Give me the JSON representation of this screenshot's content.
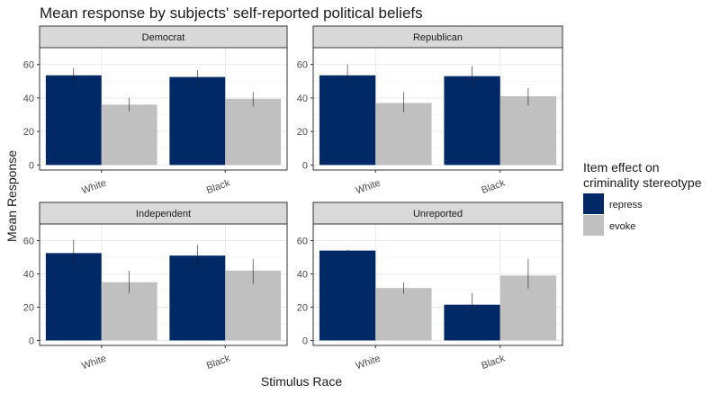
{
  "chart_data": {
    "type": "bar",
    "title": "Mean response by subjects' self-reported political beliefs",
    "xlabel": "Stimulus Race",
    "ylabel": "Mean Response",
    "categories": [
      "White",
      "Black"
    ],
    "yticks": [
      0,
      20,
      40,
      60
    ],
    "ylim": [
      -3,
      70
    ],
    "grid": true,
    "legend": {
      "title_line1": "Item effect on",
      "title_line2": "criminality stereotype",
      "placement": "right",
      "entries": [
        {
          "name": "repress",
          "color": "#002966"
        },
        {
          "name": "evoke",
          "color": "#c0c0c0"
        }
      ]
    },
    "panels": [
      {
        "name": "Democrat",
        "series": [
          {
            "name": "repress",
            "values": [
              53.5,
              52.5
            ],
            "err_low": [
              49.5,
              48.5
            ],
            "err_high": [
              58,
              56.5
            ]
          },
          {
            "name": "evoke",
            "values": [
              36,
              39.5
            ],
            "err_low": [
              32,
              35
            ],
            "err_high": [
              40,
              43.5
            ]
          }
        ]
      },
      {
        "name": "Republican",
        "series": [
          {
            "name": "repress",
            "values": [
              53.5,
              53
            ],
            "err_low": [
              47.5,
              47
            ],
            "err_high": [
              60,
              59
            ]
          },
          {
            "name": "evoke",
            "values": [
              37,
              41
            ],
            "err_low": [
              31.5,
              35.5
            ],
            "err_high": [
              43.5,
              46
            ]
          }
        ]
      },
      {
        "name": "Independent",
        "series": [
          {
            "name": "repress",
            "values": [
              52.5,
              51
            ],
            "err_low": [
              44,
              43.5
            ],
            "err_high": [
              60.5,
              57.5
            ]
          },
          {
            "name": "evoke",
            "values": [
              35,
              42
            ],
            "err_low": [
              28.5,
              34
            ],
            "err_high": [
              42,
              49
            ]
          }
        ]
      },
      {
        "name": "Unreported",
        "series": [
          {
            "name": "repress",
            "values": [
              54,
              21.5
            ],
            "err_low": [
              53.5,
              13.5
            ],
            "err_high": [
              54.5,
              28.5
            ]
          },
          {
            "name": "evoke",
            "values": [
              31.5,
              39
            ],
            "err_low": [
              28,
              31
            ],
            "err_high": [
              35,
              49
            ]
          }
        ]
      }
    ]
  }
}
